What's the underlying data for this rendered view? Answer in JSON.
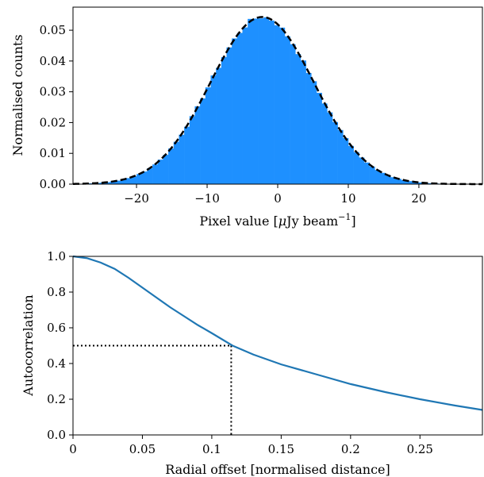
{
  "chart_data": [
    {
      "type": "bar",
      "title": "",
      "xlabel": "Pixel value [μJy beam⁻¹]",
      "xlabel_parts": {
        "main": "Pixel value [",
        "mu": "μ",
        "unit": "Jy beam",
        "sup": "−1",
        "close": "]"
      },
      "ylabel": "Normalised counts",
      "xlim": [
        -29,
        29
      ],
      "ylim": [
        0,
        0.0575
      ],
      "xticks": [
        -20,
        -10,
        0,
        10,
        20
      ],
      "xtick_labels": [
        "−20",
        "−10",
        "0",
        "10",
        "20"
      ],
      "yticks": [
        0.0,
        0.01,
        0.02,
        0.03,
        0.04,
        0.05
      ],
      "ytick_labels": [
        "0.00",
        "0.01",
        "0.02",
        "0.03",
        "0.04",
        "0.05"
      ],
      "grid": false,
      "histogram": {
        "color": "#1e90ff",
        "bin_width": 0.75,
        "range": [
          -29,
          29
        ],
        "mean": -2.2,
        "sigma": 7.35,
        "peak": 0.0543
      },
      "gaussian_fit": {
        "style": "dashed",
        "color": "#000000",
        "mean": -2.2,
        "sigma": 7.35,
        "peak": 0.0543
      }
    },
    {
      "type": "line",
      "title": "",
      "xlabel": "Radial offset [normalised distance]",
      "ylabel": "Autocorrelation",
      "xlim": [
        0,
        0.295
      ],
      "ylim": [
        0,
        1.0
      ],
      "xticks": [
        0,
        0.05,
        0.1,
        0.15,
        0.2,
        0.25
      ],
      "xtick_labels": [
        "0",
        "0.05",
        "0.1",
        "0.15",
        "0.2",
        "0.25"
      ],
      "yticks": [
        0.0,
        0.2,
        0.4,
        0.6,
        0.8,
        1.0
      ],
      "ytick_labels": [
        "0.0",
        "0.2",
        "0.4",
        "0.6",
        "0.8",
        "1.0"
      ],
      "grid": false,
      "series": [
        {
          "color": "#1f77b4",
          "x": [
            0,
            0.01,
            0.02,
            0.03,
            0.04,
            0.05,
            0.06,
            0.07,
            0.08,
            0.09,
            0.1,
            0.115,
            0.13,
            0.15,
            0.175,
            0.2,
            0.225,
            0.25,
            0.275,
            0.295
          ],
          "y": [
            1.0,
            0.99,
            0.965,
            0.93,
            0.88,
            0.825,
            0.77,
            0.715,
            0.665,
            0.615,
            0.57,
            0.5,
            0.45,
            0.395,
            0.34,
            0.285,
            0.24,
            0.2,
            0.165,
            0.14
          ]
        }
      ],
      "reference_lines": {
        "style": "dotted",
        "color": "#000000",
        "x": 0.114,
        "y": 0.5
      }
    }
  ]
}
